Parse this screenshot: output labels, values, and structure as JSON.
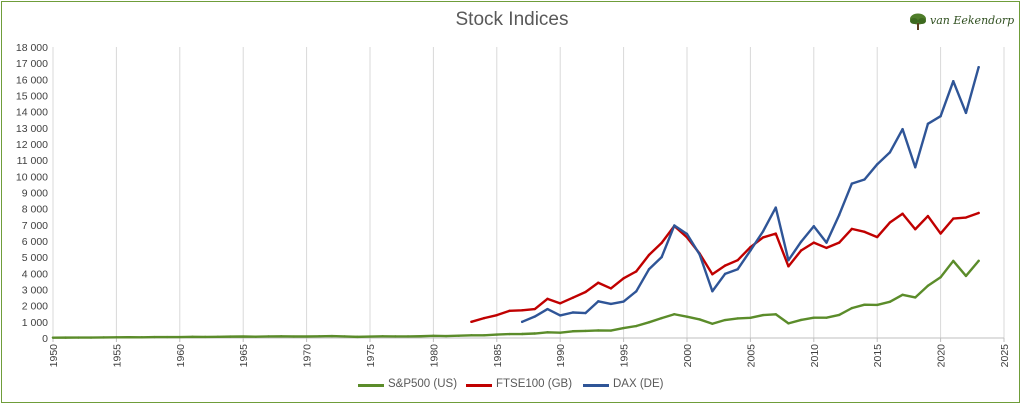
{
  "chart_data": {
    "type": "line",
    "title": "Stock Indices",
    "xlabel": "",
    "ylabel": "",
    "xlim": [
      1950,
      2025
    ],
    "ylim": [
      0,
      18000
    ],
    "x_ticks": [
      "1950",
      "1955",
      "1960",
      "1965",
      "1970",
      "1975",
      "1980",
      "1985",
      "1990",
      "1995",
      "2000",
      "2005",
      "2010",
      "2015",
      "2020",
      "2025"
    ],
    "y_ticks": [
      "0",
      "1 000",
      "2 000",
      "3 000",
      "4 000",
      "5 000",
      "6 000",
      "7 000",
      "8 000",
      "9 000",
      "10 000",
      "11 000",
      "12 000",
      "13 000",
      "14 000",
      "15 000",
      "16 000",
      "17 000",
      "18 000"
    ],
    "grid": "vertical",
    "legend_position": "bottom",
    "series": [
      {
        "name": "S&P500 (US)",
        "color": "#5b8c2a",
        "points": [
          [
            1950,
            20
          ],
          [
            1951,
            23
          ],
          [
            1952,
            26
          ],
          [
            1953,
            25
          ],
          [
            1954,
            36
          ],
          [
            1955,
            45
          ],
          [
            1956,
            47
          ],
          [
            1957,
            40
          ],
          [
            1958,
            55
          ],
          [
            1959,
            60
          ],
          [
            1960,
            58
          ],
          [
            1961,
            72
          ],
          [
            1962,
            63
          ],
          [
            1963,
            75
          ],
          [
            1964,
            85
          ],
          [
            1965,
            92
          ],
          [
            1966,
            80
          ],
          [
            1967,
            96
          ],
          [
            1968,
            104
          ],
          [
            1969,
            92
          ],
          [
            1970,
            92
          ],
          [
            1971,
            102
          ],
          [
            1972,
            118
          ],
          [
            1973,
            97
          ],
          [
            1974,
            69
          ],
          [
            1975,
            90
          ],
          [
            1976,
            107
          ],
          [
            1977,
            95
          ],
          [
            1978,
            96
          ],
          [
            1979,
            108
          ],
          [
            1980,
            136
          ],
          [
            1981,
            122
          ],
          [
            1982,
            141
          ],
          [
            1983,
            165
          ],
          [
            1984,
            167
          ],
          [
            1985,
            211
          ],
          [
            1986,
            242
          ],
          [
            1987,
            247
          ],
          [
            1988,
            278
          ],
          [
            1989,
            353
          ],
          [
            1990,
            330
          ],
          [
            1991,
            417
          ],
          [
            1992,
            436
          ],
          [
            1993,
            466
          ],
          [
            1994,
            459
          ],
          [
            1995,
            616
          ],
          [
            1996,
            741
          ],
          [
            1997,
            970
          ],
          [
            1998,
            1229
          ],
          [
            1999,
            1469
          ],
          [
            2000,
            1320
          ],
          [
            2001,
            1148
          ],
          [
            2002,
            880
          ],
          [
            2003,
            1112
          ],
          [
            2004,
            1212
          ],
          [
            2005,
            1248
          ],
          [
            2006,
            1418
          ],
          [
            2007,
            1468
          ],
          [
            2008,
            903
          ],
          [
            2009,
            1115
          ],
          [
            2010,
            1258
          ],
          [
            2011,
            1258
          ],
          [
            2012,
            1426
          ],
          [
            2013,
            1848
          ],
          [
            2014,
            2059
          ],
          [
            2015,
            2044
          ],
          [
            2016,
            2239
          ],
          [
            2017,
            2674
          ],
          [
            2018,
            2507
          ],
          [
            2019,
            3231
          ],
          [
            2020,
            3756
          ],
          [
            2021,
            4766
          ],
          [
            2022,
            3840
          ],
          [
            2023,
            4770
          ]
        ]
      },
      {
        "name": "FTSE100 (GB)",
        "color": "#c00000",
        "points": [
          [
            1983,
            1000
          ],
          [
            1984,
            1230
          ],
          [
            1985,
            1413
          ],
          [
            1986,
            1680
          ],
          [
            1987,
            1713
          ],
          [
            1988,
            1793
          ],
          [
            1989,
            2423
          ],
          [
            1990,
            2144
          ],
          [
            1991,
            2493
          ],
          [
            1992,
            2847
          ],
          [
            1993,
            3418
          ],
          [
            1994,
            3066
          ],
          [
            1995,
            3690
          ],
          [
            1996,
            4119
          ],
          [
            1997,
            5136
          ],
          [
            1998,
            5883
          ],
          [
            1999,
            6930
          ],
          [
            2000,
            6222
          ],
          [
            2001,
            5217
          ],
          [
            2002,
            3940
          ],
          [
            2003,
            4477
          ],
          [
            2004,
            4814
          ],
          [
            2005,
            5619
          ],
          [
            2006,
            6221
          ],
          [
            2007,
            6457
          ],
          [
            2008,
            4434
          ],
          [
            2009,
            5413
          ],
          [
            2010,
            5900
          ],
          [
            2011,
            5572
          ],
          [
            2012,
            5898
          ],
          [
            2013,
            6749
          ],
          [
            2014,
            6566
          ],
          [
            2015,
            6242
          ],
          [
            2016,
            7143
          ],
          [
            2017,
            7688
          ],
          [
            2018,
            6728
          ],
          [
            2019,
            7542
          ],
          [
            2020,
            6461
          ],
          [
            2021,
            7385
          ],
          [
            2022,
            7452
          ],
          [
            2023,
            7733
          ]
        ]
      },
      {
        "name": "DAX (DE)",
        "color": "#2f5597",
        "points": [
          [
            1987,
            1000
          ],
          [
            1988,
            1328
          ],
          [
            1989,
            1790
          ],
          [
            1990,
            1398
          ],
          [
            1991,
            1578
          ],
          [
            1992,
            1545
          ],
          [
            1993,
            2267
          ],
          [
            1994,
            2107
          ],
          [
            1995,
            2254
          ],
          [
            1996,
            2889
          ],
          [
            1997,
            4250
          ],
          [
            1998,
            5002
          ],
          [
            1999,
            6958
          ],
          [
            2000,
            6434
          ],
          [
            2001,
            5160
          ],
          [
            2002,
            2893
          ],
          [
            2003,
            3965
          ],
          [
            2004,
            4256
          ],
          [
            2005,
            5408
          ],
          [
            2006,
            6597
          ],
          [
            2007,
            8067
          ],
          [
            2008,
            4810
          ],
          [
            2009,
            5957
          ],
          [
            2010,
            6914
          ],
          [
            2011,
            5898
          ],
          [
            2012,
            7612
          ],
          [
            2013,
            9552
          ],
          [
            2014,
            9806
          ],
          [
            2015,
            10743
          ],
          [
            2016,
            11481
          ],
          [
            2017,
            12918
          ],
          [
            2018,
            10559
          ],
          [
            2019,
            13249
          ],
          [
            2020,
            13719
          ],
          [
            2021,
            15885
          ],
          [
            2022,
            13924
          ],
          [
            2023,
            16752
          ]
        ]
      }
    ]
  },
  "logo": {
    "text": "van Eekendorp",
    "icon": "tree-icon"
  }
}
